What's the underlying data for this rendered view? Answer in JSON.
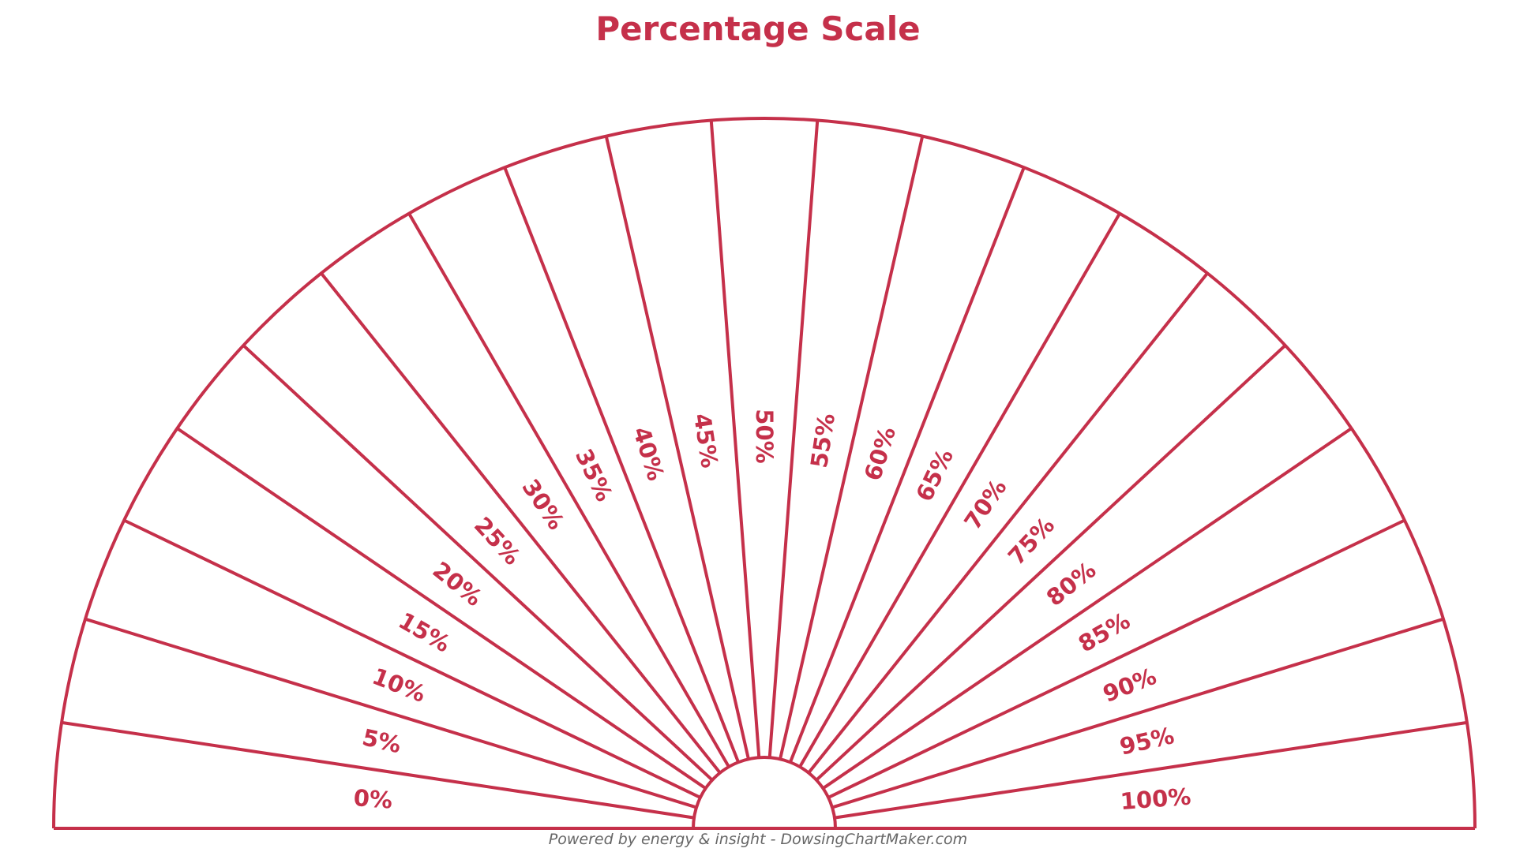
{
  "title": "Percentage Scale",
  "footer": "Powered by energy & insight - DowsingChartMaker.com",
  "colors": {
    "accent": "#c5304a",
    "footer": "#666666",
    "background": "#ffffff"
  },
  "scale": {
    "labels": [
      "0%",
      "5%",
      "10%",
      "15%",
      "20%",
      "25%",
      "30%",
      "35%",
      "40%",
      "45%",
      "50%",
      "55%",
      "60%",
      "65%",
      "70%",
      "75%",
      "80%",
      "85%",
      "90%",
      "95%",
      "100%"
    ]
  }
}
